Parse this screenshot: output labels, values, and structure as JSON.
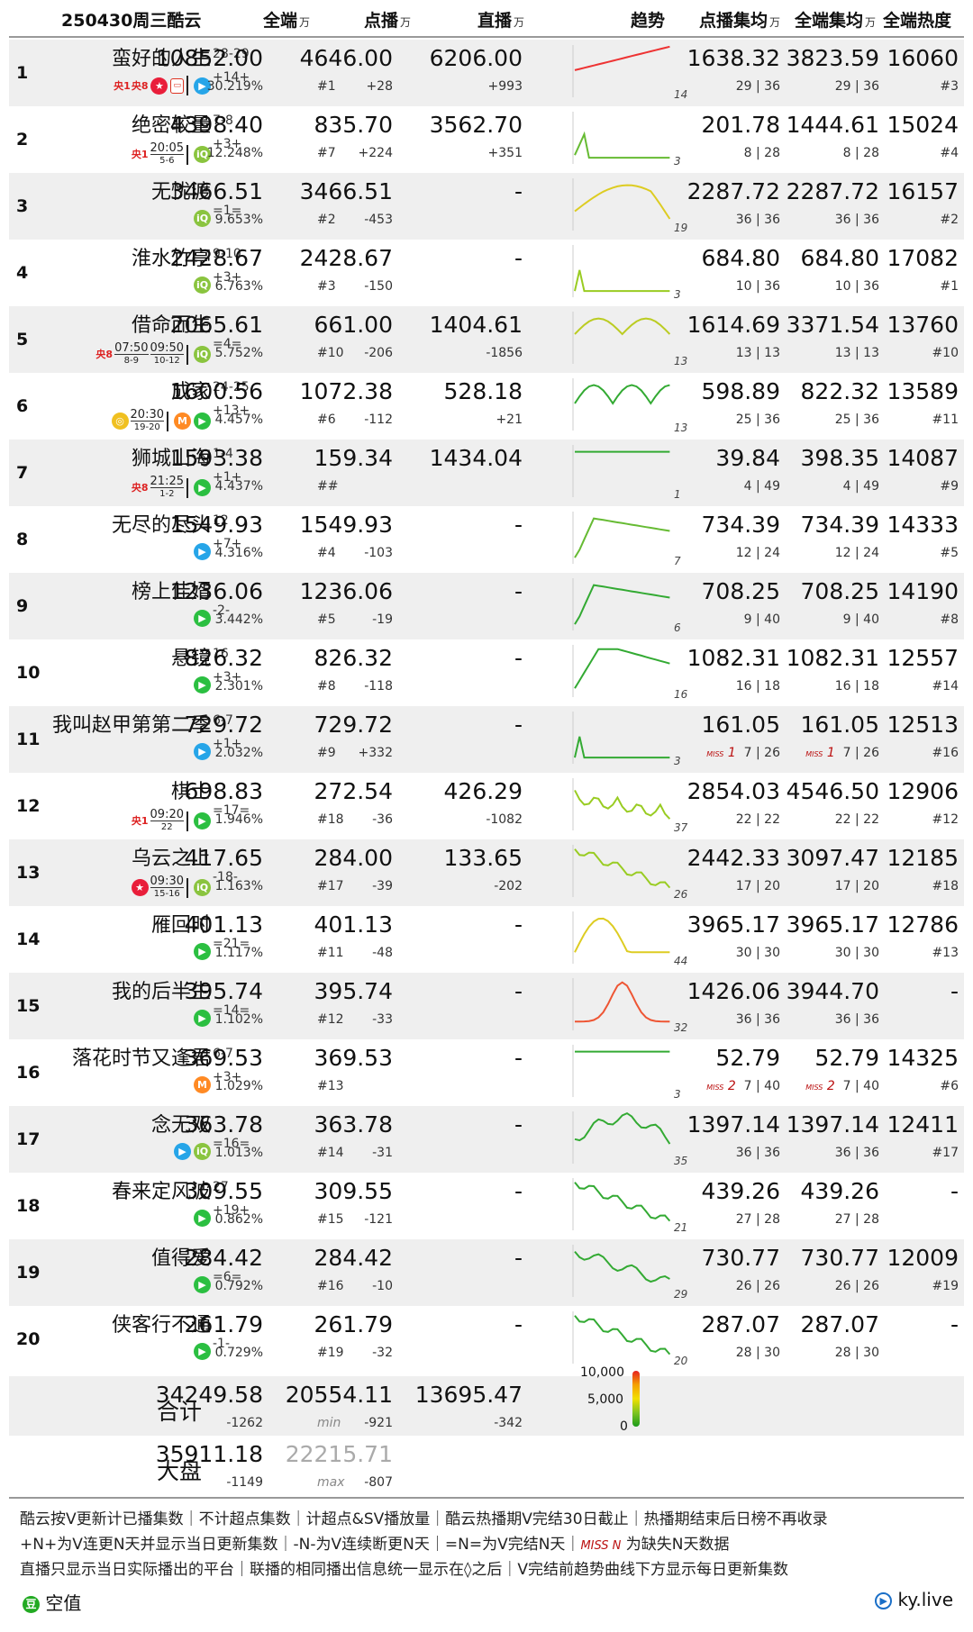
{
  "header": {
    "date_title": "250430周三酷云",
    "col_all": "全端",
    "col_vod": "点播",
    "col_live": "直播",
    "col_trend": "趋势",
    "col_vod_avg": "点播集均",
    "col_all_avg": "全端集均",
    "col_heat": "全端热度",
    "unit": "万"
  },
  "rows": [
    {
      "rank": "1",
      "title": "蛮好的人生",
      "tag": "28-29",
      "update": "+14+",
      "icons": [
        "cctv1",
        "cctv8",
        "mango",
        "cctvapp",
        "|",
        "tencent"
      ],
      "all": "10852.00",
      "share": "30.219%",
      "vod": "4646.00",
      "vod_rank": "#1",
      "vod_delta": "+28",
      "live": "6206.00",
      "live_delta": "+993",
      "trend_n": "14",
      "vod_avg": "1638.32",
      "vod_avg_ep": "29 | 36",
      "all_avg": "3823.59",
      "all_avg_ep": "29 | 36",
      "heat": "16060",
      "heat_rank": "#3",
      "trend": {
        "type": "rise2",
        "c": "#e33"
      }
    },
    {
      "rank": "2",
      "title": "绝密较量",
      "tag": "7-8",
      "update": "+3+",
      "icons": [
        "cctv1t",
        "|",
        "iqiyi"
      ],
      "time": "20:05",
      "time_date": "5-6",
      "all": "4398.40",
      "share": "12.248%",
      "vod": "835.70",
      "vod_rank": "#7",
      "vod_delta": "+224",
      "live": "3562.70",
      "live_delta": "+351",
      "trend_n": "3",
      "vod_avg": "201.78",
      "vod_avg_ep": "8 | 28",
      "all_avg": "1444.61",
      "all_avg_ep": "8 | 28",
      "heat": "15024",
      "heat_rank": "#4",
      "trend": {
        "type": "short",
        "c": "#6b3"
      }
    },
    {
      "rank": "3",
      "title": "无忧渡",
      "tag": "",
      "update": "=1=",
      "icons": [
        "iqiyi"
      ],
      "all": "3466.51",
      "share": "9.653%",
      "vod": "3466.51",
      "vod_rank": "#2",
      "vod_delta": "-453",
      "live": "-",
      "live_delta": "",
      "trend_n": "19",
      "vod_avg": "2287.72",
      "vod_avg_ep": "36 | 36",
      "all_avg": "2287.72",
      "all_avg_ep": "36 | 36",
      "heat": "16157",
      "heat_rank": "#2",
      "trend": {
        "type": "hump",
        "c": "#dc2"
      }
    },
    {
      "rank": "4",
      "title": "淮水竹亭",
      "tag": "9-10",
      "update": "+3+",
      "icons": [
        "iqiyi"
      ],
      "all": "2428.67",
      "share": "6.763%",
      "vod": "2428.67",
      "vod_rank": "#3",
      "vod_delta": "-150",
      "live": "-",
      "live_delta": "",
      "trend_n": "3",
      "vod_avg": "684.80",
      "vod_avg_ep": "10 | 36",
      "all_avg": "684.80",
      "all_avg_ep": "10 | 36",
      "heat": "17082",
      "heat_rank": "#1",
      "trend": {
        "type": "spike",
        "c": "#9c2"
      }
    },
    {
      "rank": "5",
      "title": "借命而生",
      "tag": "",
      "update": "=4=",
      "icons": [
        "cctv8t",
        "time2",
        "|",
        "iqiyi"
      ],
      "time": "07:50",
      "time_date": "8-9",
      "time2": "09:50",
      "time2_date": "10-12",
      "all": "2065.61",
      "share": "5.752%",
      "vod": "661.00",
      "vod_rank": "#10",
      "vod_delta": "-206",
      "live": "1404.61",
      "live_delta": "-1856",
      "trend_n": "13",
      "vod_avg": "1614.69",
      "vod_avg_ep": "13 | 13",
      "all_avg": "3371.54",
      "all_avg_ep": "13 | 13",
      "heat": "13760",
      "heat_rank": "#10",
      "trend": {
        "type": "double",
        "c": "#bc2"
      }
    },
    {
      "rank": "6",
      "title": "成家",
      "tag": "24-25",
      "update": "+13+",
      "icons": [
        "mangoo",
        "|",
        "migu",
        "youku"
      ],
      "time": "20:30",
      "time_date": "19-20",
      "all": "1600.56",
      "share": "4.457%",
      "vod": "1072.38",
      "vod_rank": "#6",
      "vod_delta": "-112",
      "live": "528.18",
      "live_delta": "+21",
      "trend_n": "13",
      "vod_avg": "598.89",
      "vod_avg_ep": "25 | 36",
      "all_avg": "822.32",
      "all_avg_ep": "25 | 36",
      "heat": "13589",
      "heat_rank": "#11",
      "trend": {
        "type": "wave",
        "c": "#3a3"
      }
    },
    {
      "rank": "7",
      "title": "狮城山海",
      "tag": "1-4",
      "update": "+1+",
      "icons": [
        "cctv8t",
        "|",
        "youku"
      ],
      "time": "21:25",
      "time_date": "1-2",
      "all": "1593.38",
      "share": "4.437%",
      "vod": "159.34",
      "vod_rank": "##",
      "vod_delta": "",
      "live": "1434.04",
      "live_delta": "",
      "trend_n": "1",
      "vod_avg": "39.84",
      "vod_avg_ep": "4 | 49",
      "all_avg": "398.35",
      "all_avg_ep": "4 | 49",
      "heat": "14087",
      "heat_rank": "#9",
      "trend": {
        "type": "dot",
        "c": "#3a3"
      }
    },
    {
      "rank": "8",
      "title": "无尽的尽头",
      "tag": "12",
      "update": "+7+",
      "icons": [
        "tencent"
      ],
      "all": "1549.93",
      "share": "4.316%",
      "vod": "1549.93",
      "vod_rank": "#4",
      "vod_delta": "-103",
      "live": "-",
      "live_delta": "",
      "trend_n": "7",
      "vod_avg": "734.39",
      "vod_avg_ep": "12 | 24",
      "all_avg": "734.39",
      "all_avg_ep": "12 | 24",
      "heat": "14333",
      "heat_rank": "#5",
      "trend": {
        "type": "up",
        "c": "#6b3"
      }
    },
    {
      "rank": "9",
      "title": "榜上佳婿",
      "tag": "",
      "update": "-2-",
      "icons": [
        "youku"
      ],
      "all": "1236.06",
      "share": "3.442%",
      "vod": "1236.06",
      "vod_rank": "#5",
      "vod_delta": "-19",
      "live": "-",
      "live_delta": "",
      "trend_n": "6",
      "vod_avg": "708.25",
      "vod_avg_ep": "9 | 40",
      "all_avg": "708.25",
      "all_avg_ep": "9 | 40",
      "heat": "14190",
      "heat_rank": "#8",
      "trend": {
        "type": "up",
        "c": "#3a3"
      }
    },
    {
      "rank": "10",
      "title": "悬镜",
      "tag": "16",
      "update": "+3+",
      "icons": [
        "youku"
      ],
      "all": "826.32",
      "share": "2.301%",
      "vod": "826.32",
      "vod_rank": "#8",
      "vod_delta": "-118",
      "live": "-",
      "live_delta": "",
      "trend_n": "16",
      "vod_avg": "1082.31",
      "vod_avg_ep": "16 | 18",
      "all_avg": "1082.31",
      "all_avg_ep": "16 | 18",
      "heat": "12557",
      "heat_rank": "#14",
      "trend": {
        "type": "plateau",
        "c": "#3a3"
      }
    },
    {
      "rank": "11",
      "title": "我叫赵甲第第二季",
      "tag": "6-7",
      "update": "+1+",
      "icons": [
        "tencent"
      ],
      "all": "729.72",
      "share": "2.032%",
      "vod": "729.72",
      "vod_rank": "#9",
      "vod_delta": "+332",
      "live": "-",
      "live_delta": "",
      "trend_n": "3",
      "vod_avg": "161.05",
      "vod_avg_ep": "7 | 26",
      "vod_miss": "1",
      "all_avg": "161.05",
      "all_avg_ep": "7 | 26",
      "all_miss": "1",
      "heat": "12513",
      "heat_rank": "#16",
      "trend": {
        "type": "spike",
        "c": "#3a3"
      }
    },
    {
      "rank": "12",
      "title": "棋士",
      "tag": "",
      "update": "=17=",
      "icons": [
        "cctv1t",
        "|",
        "youku"
      ],
      "time": "09:20",
      "time_date": "22",
      "all": "698.83",
      "share": "1.946%",
      "vod": "272.54",
      "vod_rank": "#18",
      "vod_delta": "-36",
      "live": "426.29",
      "live_delta": "-1082",
      "trend_n": "37",
      "vod_avg": "2854.03",
      "vod_avg_ep": "22 | 22",
      "all_avg": "4546.50",
      "all_avg_ep": "22 | 22",
      "heat": "12906",
      "heat_rank": "#12",
      "trend": {
        "type": "long",
        "c": "#9c2"
      }
    },
    {
      "rank": "13",
      "title": "乌云之上",
      "tag": "",
      "update": "-18-",
      "icons": [
        "mango",
        "time",
        "|",
        "iqiyi"
      ],
      "time": "09:30",
      "time_date": "15-16",
      "all": "417.65",
      "share": "1.163%",
      "vod": "284.00",
      "vod_rank": "#17",
      "vod_delta": "-39",
      "live": "133.65",
      "live_delta": "-202",
      "trend_n": "26",
      "vod_avg": "2442.33",
      "vod_avg_ep": "17 | 20",
      "all_avg": "3097.47",
      "all_avg_ep": "17 | 20",
      "heat": "12185",
      "heat_rank": "#18",
      "trend": {
        "type": "decay",
        "c": "#9c2"
      }
    },
    {
      "rank": "14",
      "title": "雁回时",
      "tag": "",
      "update": "=21=",
      "icons": [
        "youku"
      ],
      "all": "401.13",
      "share": "1.117%",
      "vod": "401.13",
      "vod_rank": "#11",
      "vod_delta": "-48",
      "live": "-",
      "live_delta": "",
      "trend_n": "44",
      "vod_avg": "3965.17",
      "vod_avg_ep": "30 | 30",
      "all_avg": "3965.17",
      "all_avg_ep": "30 | 30",
      "heat": "12786",
      "heat_rank": "#13",
      "trend": {
        "type": "hump2",
        "c": "#dc2"
      }
    },
    {
      "rank": "15",
      "title": "我的后半生",
      "tag": "",
      "update": "=14=",
      "icons": [
        "youku"
      ],
      "all": "395.74",
      "share": "1.102%",
      "vod": "395.74",
      "vod_rank": "#12",
      "vod_delta": "-33",
      "live": "-",
      "live_delta": "",
      "trend_n": "32",
      "vod_avg": "1426.06",
      "vod_avg_ep": "36 | 36",
      "all_avg": "3944.70",
      "all_avg_ep": "36 | 36",
      "heat": "-",
      "heat_rank": "",
      "trend": {
        "type": "peak",
        "c": "#e53"
      }
    },
    {
      "rank": "16",
      "title": "落花时节又逢君",
      "tag": "6-7",
      "update": "+3+",
      "icons": [
        "migu"
      ],
      "all": "369.53",
      "share": "1.029%",
      "vod": "369.53",
      "vod_rank": "#13",
      "vod_delta": "",
      "live": "-",
      "live_delta": "",
      "trend_n": "3",
      "vod_avg": "52.79",
      "vod_avg_ep": "7 | 40",
      "vod_miss": "2",
      "all_avg": "52.79",
      "all_avg_ep": "7 | 40",
      "all_miss": "2",
      "heat": "14325",
      "heat_rank": "#6",
      "trend": {
        "type": "dot",
        "c": "#3a3"
      }
    },
    {
      "rank": "17",
      "title": "念无双",
      "tag": "",
      "update": "=16=",
      "icons": [
        "tencent",
        "iqiyi"
      ],
      "all": "363.78",
      "share": "1.013%",
      "vod": "363.78",
      "vod_rank": "#14",
      "vod_delta": "-31",
      "live": "-",
      "live_delta": "",
      "trend_n": "35",
      "vod_avg": "1397.14",
      "vod_avg_ep": "36 | 36",
      "all_avg": "1397.14",
      "all_avg_ep": "36 | 36",
      "heat": "12411",
      "heat_rank": "#17",
      "trend": {
        "type": "hump3",
        "c": "#3a3"
      }
    },
    {
      "rank": "18",
      "title": "春来定风波",
      "tag": "27",
      "update": "+19+",
      "icons": [
        "youku"
      ],
      "all": "309.55",
      "share": "0.862%",
      "vod": "309.55",
      "vod_rank": "#15",
      "vod_delta": "-121",
      "live": "-",
      "live_delta": "",
      "trend_n": "21",
      "vod_avg": "439.26",
      "vod_avg_ep": "27 | 28",
      "all_avg": "439.26",
      "all_avg_ep": "27 | 28",
      "heat": "-",
      "heat_rank": "",
      "trend": {
        "type": "decay",
        "c": "#3a3"
      }
    },
    {
      "rank": "19",
      "title": "值得爱",
      "tag": "",
      "update": "=6=",
      "icons": [
        "youku"
      ],
      "all": "284.42",
      "share": "0.792%",
      "vod": "284.42",
      "vod_rank": "#16",
      "vod_delta": "-10",
      "live": "-",
      "live_delta": "",
      "trend_n": "29",
      "vod_avg": "730.77",
      "vod_avg_ep": "26 | 26",
      "all_avg": "730.77",
      "all_avg_ep": "26 | 26",
      "heat": "12009",
      "heat_rank": "#19",
      "trend": {
        "type": "flat",
        "c": "#3a3"
      }
    },
    {
      "rank": "20",
      "title": "侠客行不通",
      "tag": "",
      "update": "-1-",
      "icons": [
        "youku"
      ],
      "all": "261.79",
      "share": "0.729%",
      "vod": "261.79",
      "vod_rank": "#19",
      "vod_delta": "-32",
      "live": "-",
      "live_delta": "",
      "trend_n": "20",
      "vod_avg": "287.07",
      "vod_avg_ep": "28 | 30",
      "all_avg": "287.07",
      "all_avg_ep": "28 | 30",
      "heat": "-",
      "heat_rank": "",
      "trend": {
        "type": "decay",
        "c": "#3a3"
      }
    }
  ],
  "total": {
    "label": "合计",
    "all": "34249.58",
    "all_delta": "-1262",
    "vod": "20554.11",
    "vod_delta": "-921",
    "vod_note": "min",
    "live": "13695.47",
    "live_delta": "-342"
  },
  "market": {
    "label": "大盘",
    "all": "35911.18",
    "all_delta": "-1149",
    "vod": "22215.71",
    "vod_delta": "-807",
    "vod_note": "max"
  },
  "legend_ticks": [
    "10,000",
    "5,000",
    "0"
  ],
  "notes": [
    "酷云按V更新计已播集数｜不计超点集数｜计超点&SV播放量｜酷云热播期V完结30日截止｜热播期结束后日榜不再收录",
    "+N+为V连更N天并显示当日更新集数｜-N-为V连续断更N天｜=N=为V完结N天｜",
    "为缺失N天数据",
    "直播只显示当日实际播出的平台｜联播的相同播出信息统一显示在◊之后｜V完结前趋势曲线下方显示每日更新集数"
  ],
  "miss_label": "MISS N",
  "brand_left": "空值",
  "brand_right": "ky.live",
  "colors": {
    "row_alt": "#efefef",
    "miss": "#b11111"
  },
  "chart_data": {
    "type": "table",
    "title": "250430周三酷云",
    "columns": [
      "全端",
      "点播",
      "直播",
      "点播集均",
      "全端集均",
      "全端热度"
    ],
    "unit": "万",
    "series": [
      {
        "name": "全端",
        "values": [
          10852.0,
          4398.4,
          3466.51,
          2428.67,
          2065.61,
          1600.56,
          1593.38,
          1549.93,
          1236.06,
          826.32,
          729.72,
          698.83,
          417.65,
          401.13,
          395.74,
          369.53,
          363.78,
          309.55,
          284.42,
          261.79
        ]
      },
      {
        "name": "点播",
        "values": [
          4646.0,
          835.7,
          3466.51,
          2428.67,
          661.0,
          1072.38,
          159.34,
          1549.93,
          1236.06,
          826.32,
          729.72,
          272.54,
          284.0,
          401.13,
          395.74,
          369.53,
          363.78,
          309.55,
          284.42,
          261.79
        ]
      }
    ]
  }
}
